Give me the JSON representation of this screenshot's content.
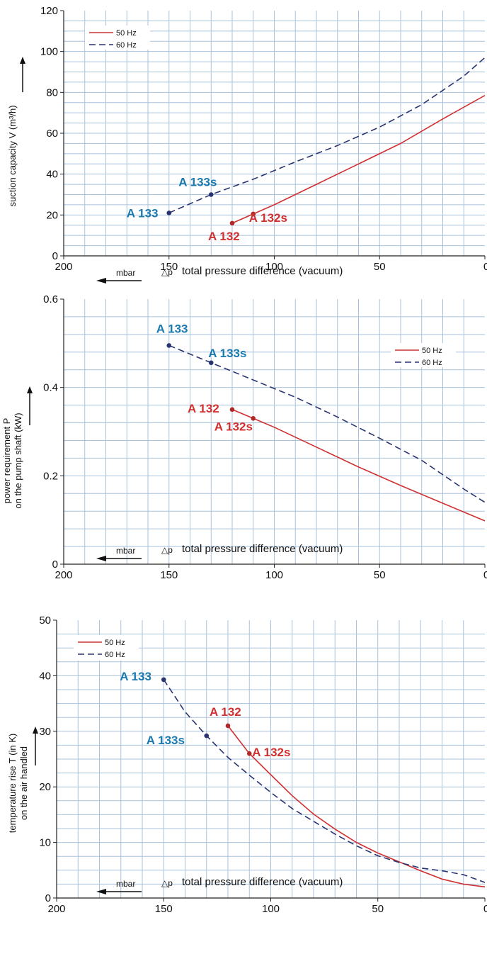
{
  "colors": {
    "hz50": "#d03030",
    "hz60": "#2a3470",
    "a133": "#1a7ab0",
    "a132": "#d03030",
    "grid": "#a9c2dc",
    "axis": "#222222"
  },
  "chart_data": [
    {
      "type": "line",
      "xlim": [
        200,
        0
      ],
      "ylim": [
        0,
        120
      ],
      "x_ticks": [
        "200",
        "150",
        "100",
        "50",
        "0"
      ],
      "y_ticks": [
        "0",
        "20",
        "40",
        "60",
        "80",
        "100",
        "120"
      ],
      "ylabel": [
        "suction capacity V (m³/h)"
      ],
      "xlabel": "total pressure difference (vacuum)",
      "x_unit": "mbar",
      "delta_label": "△p",
      "legend": {
        "position": "top-left",
        "entries": [
          "50 Hz",
          "60 Hz"
        ]
      },
      "series": [
        {
          "name": "50 Hz",
          "style": "solid",
          "x": [
            120,
            110,
            100,
            80,
            60,
            40,
            20,
            0
          ],
          "y": [
            16,
            20.5,
            25,
            35,
            45,
            55,
            67,
            78.5
          ]
        },
        {
          "name": "60 Hz",
          "style": "dashed",
          "x": [
            150,
            130,
            110,
            90,
            70,
            50,
            30,
            10,
            0
          ],
          "y": [
            21,
            30,
            37.5,
            46,
            54,
            63,
            74,
            88,
            97
          ]
        }
      ],
      "points": [
        {
          "label": "A 133",
          "x": 150,
          "y": 21,
          "color": "a133"
        },
        {
          "label": "A 133s",
          "x": 130,
          "y": 30,
          "color": "a133"
        },
        {
          "label": "A 132",
          "x": 120,
          "y": 16,
          "color": "a132"
        },
        {
          "label": "A 132s",
          "x": 110,
          "y": 20.5,
          "color": "a132"
        }
      ]
    },
    {
      "type": "line",
      "xlim": [
        200,
        0
      ],
      "ylim": [
        0,
        0.6
      ],
      "x_ticks": [
        "200",
        "150",
        "100",
        "50",
        "0"
      ],
      "y_ticks": [
        "0",
        "0.2",
        "0.4",
        "0.6"
      ],
      "ylabel": [
        "power requirement P",
        "on the pump shaft (kW)"
      ],
      "xlabel": "total pressure difference (vacuum)",
      "x_unit": "mbar",
      "delta_label": "△p",
      "legend": {
        "position": "top-right",
        "entries": [
          "50 Hz",
          "60 Hz"
        ]
      },
      "series": [
        {
          "name": "50 Hz",
          "style": "solid",
          "x": [
            120,
            110,
            100,
            80,
            60,
            40,
            20,
            0
          ],
          "y": [
            0.35,
            0.33,
            0.31,
            0.265,
            0.22,
            0.178,
            0.138,
            0.098
          ]
        },
        {
          "name": "60 Hz",
          "style": "dashed",
          "x": [
            150,
            130,
            110,
            90,
            70,
            50,
            30,
            10,
            0
          ],
          "y": [
            0.495,
            0.456,
            0.417,
            0.378,
            0.333,
            0.285,
            0.235,
            0.17,
            0.14
          ]
        }
      ],
      "points": [
        {
          "label": "A 133",
          "x": 150,
          "y": 0.495,
          "color": "a133"
        },
        {
          "label": "A 133s",
          "x": 130,
          "y": 0.456,
          "color": "a133"
        },
        {
          "label": "A 132",
          "x": 120,
          "y": 0.35,
          "color": "a132"
        },
        {
          "label": "A 132s",
          "x": 110,
          "y": 0.33,
          "color": "a132"
        }
      ]
    },
    {
      "type": "line",
      "xlim": [
        200,
        0
      ],
      "ylim": [
        0,
        50
      ],
      "x_ticks": [
        "200",
        "150",
        "100",
        "50",
        "0"
      ],
      "y_ticks": [
        "0",
        "10",
        "20",
        "30",
        "40",
        "50"
      ],
      "ylabel": [
        "temperature rise T (in K)",
        "on the air handled"
      ],
      "xlabel": "total pressure difference (vacuum)",
      "x_unit": "mbar",
      "delta_label": "△p",
      "legend": {
        "position": "top-left",
        "entries": [
          "50 Hz",
          "60 Hz"
        ]
      },
      "series": [
        {
          "name": "50 Hz",
          "style": "solid",
          "x": [
            120,
            110,
            100,
            90,
            80,
            70,
            60,
            50,
            40,
            30,
            20,
            10,
            0
          ],
          "y": [
            31,
            26,
            22.2,
            18.4,
            15.1,
            12.4,
            10,
            8.1,
            6.5,
            4.9,
            3.4,
            2.5,
            2
          ]
        },
        {
          "name": "60 Hz",
          "style": "dashed",
          "x": [
            150,
            140,
            130,
            120,
            110,
            100,
            90,
            80,
            70,
            60,
            50,
            40,
            30,
            20,
            10,
            0
          ],
          "y": [
            39.3,
            33.5,
            29.2,
            25.3,
            22.1,
            19,
            16.1,
            13.8,
            11.5,
            9.4,
            7.6,
            6.4,
            5.4,
            4.9,
            4.2,
            2.8
          ]
        }
      ],
      "points": [
        {
          "label": "A 133",
          "x": 150,
          "y": 39.3,
          "color": "a133"
        },
        {
          "label": "A 133s",
          "x": 130,
          "y": 29.2,
          "color": "a133"
        },
        {
          "label": "A 132",
          "x": 120,
          "y": 31,
          "color": "a132"
        },
        {
          "label": "A 132s",
          "x": 110,
          "y": 26,
          "color": "a132"
        }
      ]
    }
  ]
}
